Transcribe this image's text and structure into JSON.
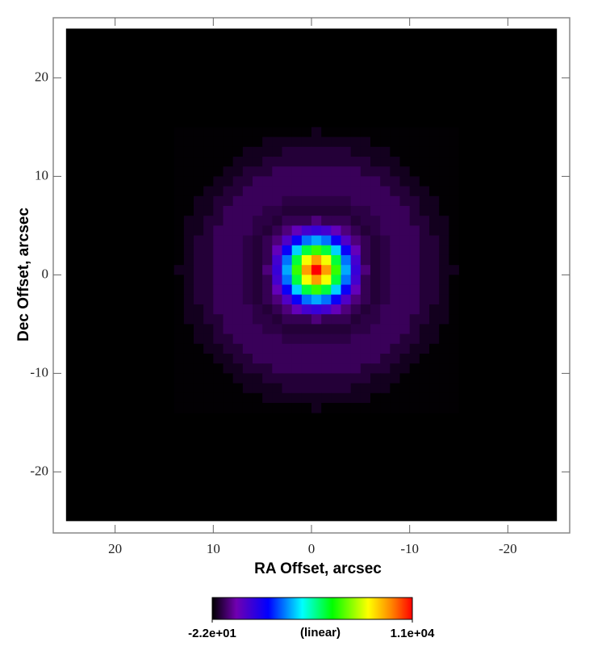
{
  "chart_data": {
    "type": "heatmap",
    "xlabel": "RA Offset, arcsec",
    "ylabel": "Dec Offset, arcsec",
    "xlim": [
      26.3,
      -26.3
    ],
    "ylim": [
      -26.2,
      26.1
    ],
    "xticks": [
      20,
      10,
      0,
      -10,
      -20
    ],
    "yticks": [
      20,
      10,
      0,
      -10,
      -20
    ],
    "extent": {
      "x": [
        25,
        -25
      ],
      "y": [
        -25,
        25
      ]
    },
    "x": [
      13.5,
      12.5,
      11.5,
      10.5,
      9.5,
      8.5,
      7.5,
      6.5,
      5.5,
      4.5,
      3.5,
      2.5,
      1.5,
      0.5,
      -0.5,
      -1.5,
      -2.5,
      -3.5,
      -4.5,
      -5.5,
      -6.5,
      -7.5,
      -8.5,
      -9.5,
      -10.5,
      -11.5,
      -12.5,
      -13.5,
      -14.5
    ],
    "y": [
      14.5,
      13.5,
      12.5,
      11.5,
      10.5,
      9.5,
      8.5,
      7.5,
      6.5,
      5.5,
      4.5,
      3.5,
      2.5,
      1.5,
      0.5,
      -0.5,
      -1.5,
      -2.5,
      -3.5,
      -4.5,
      -5.5,
      -6.5,
      -7.5,
      -8.5,
      -9.5,
      -10.5,
      -11.5,
      -12.5,
      -13.5
    ],
    "z": [
      [
        0,
        0,
        0,
        0,
        0,
        0,
        0,
        0,
        0,
        0,
        0,
        0,
        0,
        0,
        200,
        0,
        0,
        0,
        0,
        0,
        0,
        0,
        0,
        0,
        0,
        0,
        0,
        0,
        0
      ],
      [
        0,
        0,
        0,
        0,
        0,
        0,
        0,
        0,
        0,
        200,
        200,
        200,
        200,
        200,
        200,
        200,
        200,
        200,
        200,
        200,
        0,
        0,
        0,
        0,
        0,
        0,
        0,
        0,
        0
      ],
      [
        0,
        0,
        0,
        0,
        0,
        0,
        0,
        200,
        200,
        200,
        200,
        400,
        400,
        400,
        400,
        400,
        400,
        400,
        200,
        200,
        200,
        200,
        0,
        0,
        0,
        0,
        0,
        0,
        0
      ],
      [
        0,
        0,
        0,
        0,
        0,
        0,
        200,
        200,
        200,
        400,
        400,
        400,
        400,
        400,
        400,
        400,
        400,
        400,
        400,
        400,
        200,
        200,
        200,
        0,
        0,
        0,
        0,
        0,
        0
      ],
      [
        0,
        0,
        0,
        0,
        0,
        200,
        200,
        400,
        400,
        400,
        650,
        650,
        650,
        650,
        650,
        650,
        650,
        650,
        650,
        400,
        400,
        400,
        200,
        200,
        0,
        0,
        0,
        0,
        0
      ],
      [
        0,
        0,
        0,
        0,
        200,
        200,
        400,
        400,
        650,
        650,
        650,
        650,
        650,
        650,
        650,
        650,
        650,
        650,
        650,
        650,
        650,
        400,
        400,
        200,
        200,
        0,
        0,
        0,
        0
      ],
      [
        0,
        0,
        0,
        200,
        200,
        400,
        400,
        650,
        650,
        650,
        650,
        650,
        650,
        650,
        650,
        650,
        650,
        650,
        650,
        650,
        650,
        650,
        400,
        400,
        200,
        200,
        0,
        0,
        0
      ],
      [
        0,
        0,
        200,
        200,
        400,
        400,
        650,
        650,
        650,
        650,
        650,
        500,
        500,
        500,
        500,
        500,
        500,
        500,
        650,
        650,
        650,
        650,
        650,
        400,
        400,
        200,
        200,
        0,
        0
      ],
      [
        0,
        0,
        200,
        200,
        400,
        650,
        650,
        650,
        650,
        500,
        500,
        400,
        400,
        400,
        400,
        400,
        400,
        400,
        500,
        500,
        650,
        650,
        650,
        650,
        400,
        200,
        200,
        0,
        0
      ],
      [
        0,
        200,
        200,
        400,
        400,
        650,
        650,
        650,
        500,
        500,
        400,
        600,
        600,
        600,
        900,
        600,
        600,
        600,
        400,
        500,
        500,
        650,
        650,
        650,
        400,
        400,
        200,
        200,
        0
      ],
      [
        0,
        200,
        200,
        400,
        650,
        650,
        650,
        650,
        500,
        400,
        600,
        900,
        1500,
        2000,
        2200,
        2000,
        1500,
        900,
        600,
        400,
        500,
        650,
        650,
        650,
        650,
        400,
        200,
        200,
        0
      ],
      [
        0,
        200,
        400,
        400,
        650,
        650,
        650,
        500,
        400,
        600,
        900,
        1800,
        2900,
        3900,
        4300,
        3900,
        2900,
        1800,
        900,
        600,
        400,
        500,
        650,
        650,
        650,
        400,
        400,
        200,
        0
      ],
      [
        0,
        200,
        400,
        400,
        650,
        650,
        650,
        500,
        400,
        600,
        1500,
        2900,
        4600,
        6200,
        7000,
        6200,
        4600,
        2900,
        1500,
        600,
        400,
        500,
        650,
        650,
        650,
        400,
        400,
        200,
        0
      ],
      [
        0,
        200,
        400,
        400,
        650,
        650,
        650,
        500,
        400,
        600,
        2000,
        3900,
        6200,
        8500,
        9600,
        8500,
        6200,
        3900,
        2000,
        600,
        400,
        500,
        650,
        650,
        650,
        400,
        400,
        200,
        0
      ],
      [
        200,
        200,
        400,
        400,
        650,
        650,
        650,
        500,
        400,
        900,
        2200,
        4300,
        7000,
        9600,
        11000,
        9600,
        7000,
        4300,
        2200,
        900,
        400,
        500,
        650,
        650,
        650,
        400,
        400,
        200,
        200
      ],
      [
        0,
        200,
        400,
        400,
        650,
        650,
        650,
        500,
        400,
        600,
        2000,
        3900,
        6200,
        8500,
        9600,
        8500,
        6200,
        3900,
        2000,
        600,
        400,
        500,
        650,
        650,
        650,
        400,
        400,
        200,
        0
      ],
      [
        0,
        200,
        400,
        400,
        650,
        650,
        650,
        500,
        400,
        600,
        1500,
        2900,
        4600,
        6200,
        7000,
        6200,
        4600,
        2900,
        1500,
        600,
        400,
        500,
        650,
        650,
        650,
        400,
        400,
        200,
        0
      ],
      [
        0,
        200,
        400,
        400,
        650,
        650,
        650,
        500,
        400,
        600,
        900,
        1800,
        2900,
        3900,
        4300,
        3900,
        2900,
        1800,
        900,
        600,
        400,
        500,
        650,
        650,
        650,
        400,
        400,
        200,
        0
      ],
      [
        0,
        200,
        200,
        400,
        650,
        650,
        650,
        650,
        500,
        400,
        600,
        900,
        1500,
        2000,
        2200,
        2000,
        1500,
        900,
        600,
        400,
        500,
        650,
        650,
        650,
        650,
        400,
        200,
        200,
        0
      ],
      [
        0,
        200,
        200,
        400,
        400,
        650,
        650,
        650,
        500,
        500,
        400,
        600,
        600,
        600,
        900,
        600,
        600,
        600,
        400,
        500,
        500,
        650,
        650,
        650,
        400,
        400,
        200,
        200,
        0
      ],
      [
        0,
        0,
        200,
        200,
        400,
        650,
        650,
        650,
        650,
        500,
        500,
        400,
        400,
        400,
        400,
        400,
        400,
        400,
        500,
        500,
        650,
        650,
        650,
        650,
        400,
        200,
        200,
        0,
        0
      ],
      [
        0,
        0,
        200,
        200,
        400,
        400,
        650,
        650,
        650,
        650,
        650,
        500,
        500,
        500,
        500,
        500,
        500,
        500,
        650,
        650,
        650,
        650,
        650,
        400,
        400,
        200,
        200,
        0,
        0
      ],
      [
        0,
        0,
        0,
        200,
        200,
        400,
        400,
        650,
        650,
        650,
        650,
        650,
        650,
        650,
        650,
        650,
        650,
        650,
        650,
        650,
        650,
        650,
        400,
        400,
        200,
        200,
        0,
        0,
        0
      ],
      [
        0,
        0,
        0,
        0,
        200,
        200,
        400,
        400,
        650,
        650,
        650,
        650,
        650,
        650,
        650,
        650,
        650,
        650,
        650,
        650,
        650,
        400,
        400,
        200,
        200,
        0,
        0,
        0,
        0
      ],
      [
        0,
        0,
        0,
        0,
        0,
        200,
        200,
        400,
        400,
        400,
        650,
        650,
        650,
        650,
        650,
        650,
        650,
        650,
        650,
        400,
        400,
        400,
        200,
        200,
        0,
        0,
        0,
        0,
        0
      ],
      [
        0,
        0,
        0,
        0,
        0,
        0,
        200,
        200,
        200,
        400,
        400,
        400,
        400,
        400,
        400,
        400,
        400,
        400,
        400,
        400,
        200,
        200,
        200,
        0,
        0,
        0,
        0,
        0,
        0
      ],
      [
        0,
        0,
        0,
        0,
        0,
        0,
        0,
        200,
        200,
        200,
        200,
        400,
        400,
        400,
        400,
        400,
        400,
        400,
        200,
        200,
        200,
        200,
        0,
        0,
        0,
        0,
        0,
        0,
        0
      ],
      [
        0,
        0,
        0,
        0,
        0,
        0,
        0,
        0,
        0,
        200,
        200,
        200,
        200,
        200,
        200,
        200,
        200,
        200,
        200,
        200,
        0,
        0,
        0,
        0,
        0,
        0,
        0,
        0,
        0
      ],
      [
        0,
        0,
        0,
        0,
        0,
        0,
        0,
        0,
        0,
        0,
        0,
        0,
        0,
        0,
        200,
        0,
        0,
        0,
        0,
        0,
        0,
        0,
        0,
        0,
        0,
        0,
        0,
        0,
        0
      ]
    ],
    "colormap": [
      [
        0,
        "#000000"
      ],
      [
        0.12,
        "#7000b0"
      ],
      [
        0.28,
        "#0000ff"
      ],
      [
        0.45,
        "#00ffff"
      ],
      [
        0.6,
        "#00ff00"
      ],
      [
        0.78,
        "#ffff00"
      ],
      [
        0.9,
        "#ff8000"
      ],
      [
        1,
        "#ff0000"
      ]
    ],
    "colorbar": {
      "ticks": [
        {
          "value": -22,
          "label": "-2.2e+01"
        },
        {
          "value": 11000,
          "label": "1.1e+04"
        }
      ],
      "scale": "(linear)"
    }
  }
}
